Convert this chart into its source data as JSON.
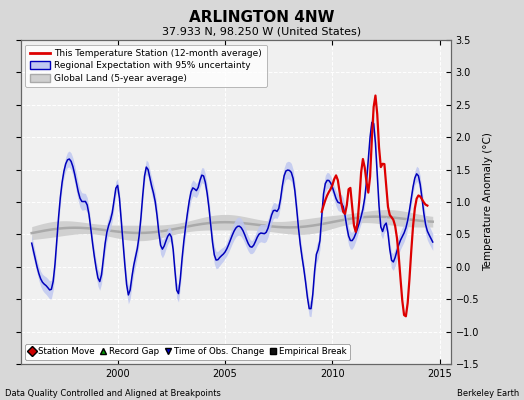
{
  "title": "ARLINGTON 4NW",
  "subtitle": "37.933 N, 98.250 W (United States)",
  "ylabel": "Temperature Anomaly (°C)",
  "xlabel_note": "Data Quality Controlled and Aligned at Breakpoints",
  "credit": "Berkeley Earth",
  "ylim": [
    -1.5,
    3.5
  ],
  "xlim": [
    1995.5,
    2015.5
  ],
  "yticks": [
    -1.5,
    -1.0,
    -0.5,
    0.0,
    0.5,
    1.0,
    1.5,
    2.0,
    2.5,
    3.0,
    3.5
  ],
  "xticks": [
    2000,
    2005,
    2010,
    2015
  ],
  "fig_bg": "#d8d8d8",
  "plot_bg": "#f0f0f0",
  "grid_color": "#ffffff",
  "regional_line_color": "#0000bb",
  "regional_fill_color": "#c0c8f0",
  "station_line_color": "#dd0000",
  "global_line_color": "#aaaaaa",
  "global_fill_color": "#d0d0d0",
  "title_fontsize": 11,
  "subtitle_fontsize": 8,
  "tick_fontsize": 7,
  "ylabel_fontsize": 7.5,
  "legend_fontsize": 6.5,
  "note_fontsize": 6
}
